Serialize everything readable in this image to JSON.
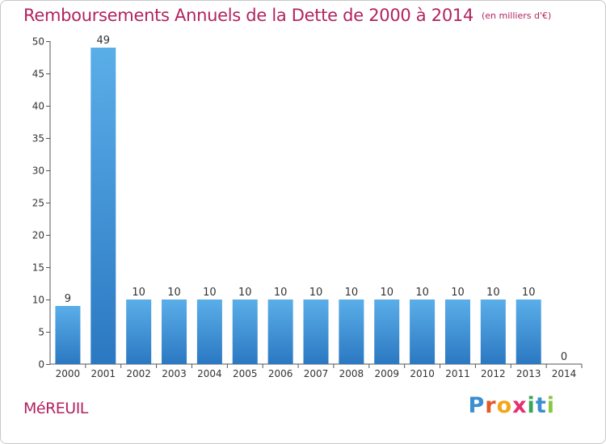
{
  "header": {
    "title": "Remboursements Annuels de la Dette de 2000 à 2014",
    "subtitle": "(en milliers d'€)"
  },
  "footer": {
    "commune": "MéREUIL",
    "brand_letters": [
      {
        "ch": "P",
        "color": "#3b8ed0"
      },
      {
        "ch": "r",
        "color": "#e05a2b"
      },
      {
        "ch": "o",
        "color": "#f2a71b"
      },
      {
        "ch": "x",
        "color": "#e52f6f"
      },
      {
        "ch": "i",
        "color": "#3aa655"
      },
      {
        "ch": "t",
        "color": "#3b8ed0"
      },
      {
        "ch": "i",
        "color": "#8cc63f"
      }
    ]
  },
  "chart_data": {
    "type": "bar",
    "title": "Remboursements Annuels de la Dette de 2000 à 2014",
    "subtitle": "(en milliers d'€)",
    "categories": [
      "2000",
      "2001",
      "2002",
      "2003",
      "2004",
      "2005",
      "2006",
      "2007",
      "2008",
      "2009",
      "2010",
      "2011",
      "2012",
      "2013",
      "2014"
    ],
    "values": [
      9,
      49,
      10,
      10,
      10,
      10,
      10,
      10,
      10,
      10,
      10,
      10,
      10,
      10,
      0
    ],
    "ylim": [
      0,
      50
    ],
    "yticks": [
      0,
      5,
      10,
      15,
      20,
      25,
      30,
      35,
      40,
      45,
      50
    ],
    "grid": false,
    "colors": {
      "bar_top": "#5aaee8",
      "bar_bottom": "#2b78c2",
      "title": "#b2235f"
    }
  }
}
